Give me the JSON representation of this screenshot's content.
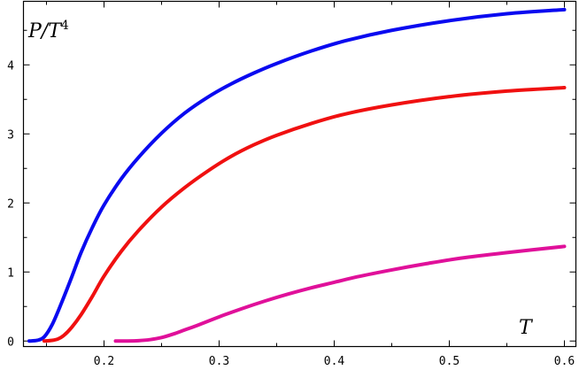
{
  "chart_data": {
    "type": "line",
    "xlabel": "T",
    "ylabel": "P/T",
    "ylabel_sup": "4",
    "xlim": [
      0.13,
      0.61
    ],
    "ylim": [
      -0.08,
      4.92
    ],
    "x_ticks": [
      0.2,
      0.3,
      0.4,
      0.5,
      0.6
    ],
    "x_tick_labels": [
      "0.2",
      "0.3",
      "0.4",
      "0.5",
      "0.6"
    ],
    "y_ticks": [
      0,
      1,
      2,
      3,
      4
    ],
    "y_tick_labels": [
      "0",
      "1",
      "2",
      "3",
      "4"
    ],
    "grid": false,
    "legend": "none",
    "series": [
      {
        "color": "#0a0af0",
        "x": [
          0.135,
          0.142,
          0.148,
          0.155,
          0.163,
          0.172,
          0.18,
          0.19,
          0.2,
          0.215,
          0.23,
          0.25,
          0.27,
          0.29,
          0.31,
          0.33,
          0.35,
          0.38,
          0.41,
          0.45,
          0.5,
          0.55,
          0.6
        ],
        "y": [
          0.0,
          0.01,
          0.06,
          0.24,
          0.55,
          0.93,
          1.28,
          1.65,
          1.97,
          2.35,
          2.66,
          3.01,
          3.3,
          3.53,
          3.72,
          3.88,
          4.02,
          4.2,
          4.35,
          4.5,
          4.64,
          4.74,
          4.8
        ]
      },
      {
        "color": "#f01010",
        "x": [
          0.148,
          0.155,
          0.16,
          0.165,
          0.172,
          0.18,
          0.19,
          0.2,
          0.215,
          0.23,
          0.25,
          0.27,
          0.29,
          0.31,
          0.33,
          0.35,
          0.38,
          0.41,
          0.45,
          0.5,
          0.55,
          0.6
        ],
        "y": [
          0.0,
          0.01,
          0.03,
          0.08,
          0.2,
          0.38,
          0.65,
          0.94,
          1.3,
          1.6,
          1.94,
          2.22,
          2.46,
          2.67,
          2.84,
          2.98,
          3.15,
          3.29,
          3.42,
          3.54,
          3.62,
          3.67
        ]
      },
      {
        "color": "#e0109a",
        "x": [
          0.21,
          0.22,
          0.23,
          0.24,
          0.25,
          0.26,
          0.27,
          0.28,
          0.3,
          0.32,
          0.34,
          0.36,
          0.38,
          0.4,
          0.42,
          0.45,
          0.48,
          0.51,
          0.55,
          0.6
        ],
        "y": [
          0.0,
          0.0,
          0.005,
          0.02,
          0.05,
          0.1,
          0.16,
          0.22,
          0.35,
          0.47,
          0.58,
          0.68,
          0.77,
          0.85,
          0.93,
          1.03,
          1.12,
          1.2,
          1.28,
          1.37
        ]
      }
    ]
  }
}
